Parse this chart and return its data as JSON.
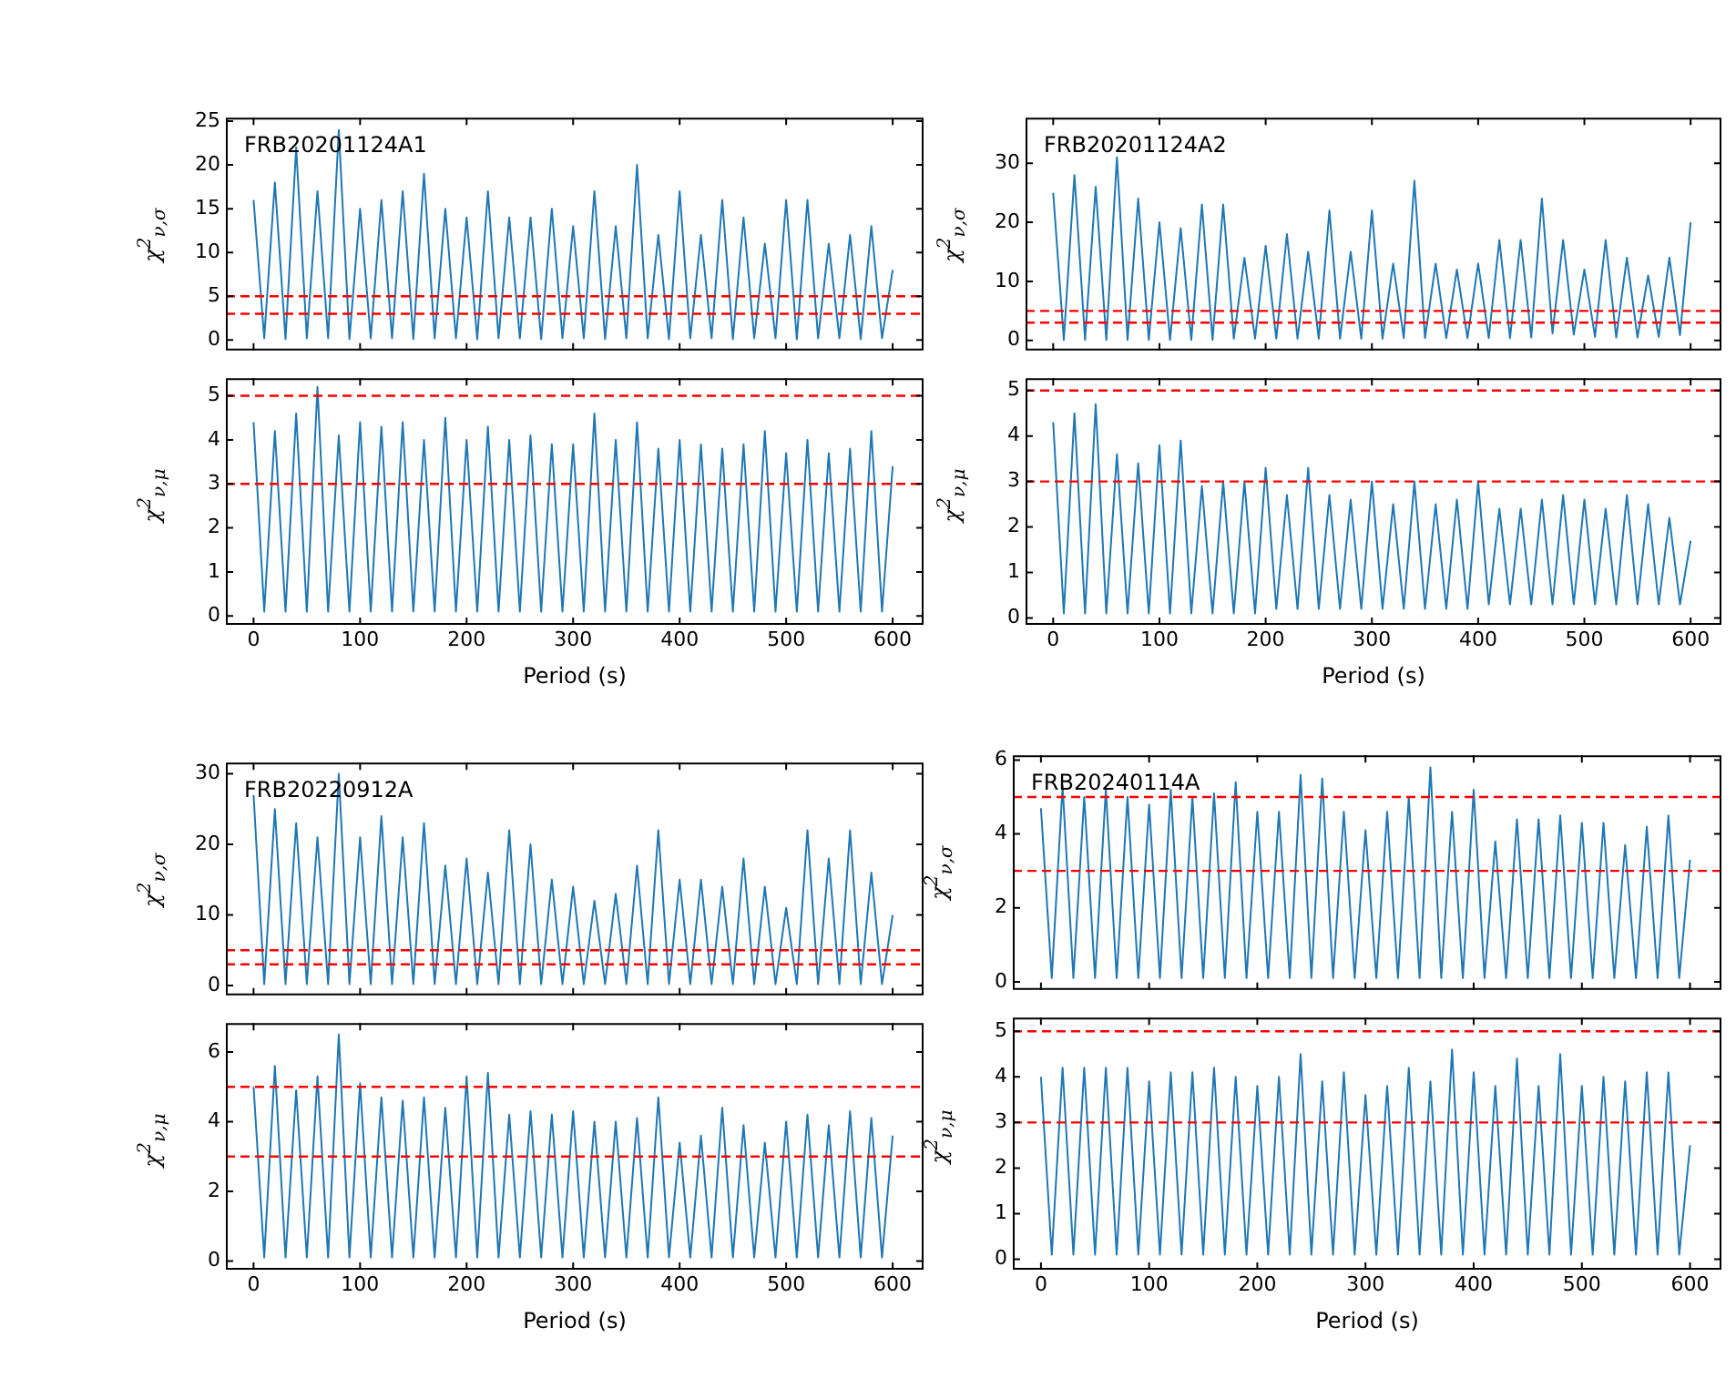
{
  "chart_data": [
    {
      "type": "line",
      "annotations": [
        "FRB20201124A1"
      ],
      "ylabel": "χ$^{2}$$_{ν,σ}$",
      "tick_labels": "y",
      "xlim": [
        -26,
        629
      ],
      "xticks": [
        0,
        100,
        200,
        300,
        400,
        500,
        600
      ],
      "ylim": [
        -1.2,
        25.4
      ],
      "yticks": [
        0,
        5,
        10,
        15,
        20,
        25
      ],
      "x": [
        0,
        10,
        20,
        30,
        40,
        50,
        60,
        70,
        80,
        90,
        100,
        110,
        120,
        130,
        140,
        150,
        160,
        170,
        180,
        190,
        200,
        210,
        220,
        230,
        240,
        250,
        260,
        270,
        280,
        290,
        300,
        310,
        320,
        330,
        340,
        350,
        360,
        370,
        380,
        390,
        400,
        410,
        420,
        430,
        440,
        450,
        460,
        470,
        480,
        490,
        500,
        510,
        520,
        530,
        540,
        550,
        560,
        570,
        580,
        590,
        600
      ],
      "series": [
        {
          "color": "#1f77b4",
          "values": [
            16,
            0.2,
            18,
            0.1,
            22,
            0.2,
            17,
            0.2,
            24,
            0.1,
            15,
            0.2,
            16,
            0.2,
            17,
            0.1,
            19,
            0.2,
            15,
            0.2,
            14,
            0.1,
            17,
            0.2,
            14,
            0.2,
            14,
            0.1,
            15,
            0.2,
            13,
            0.2,
            17,
            0.1,
            13,
            0.2,
            20,
            0.2,
            12,
            0.1,
            17,
            0.2,
            12,
            0.2,
            16,
            0.1,
            14,
            0.2,
            11,
            0.2,
            16,
            0.1,
            16,
            0.2,
            11,
            0.2,
            12,
            0.1,
            13,
            0.2,
            8
          ]
        }
      ],
      "ref_lines": [
        {
          "axis": "y",
          "value": 5,
          "color": "#ff0000",
          "line_style": "dashed"
        },
        {
          "axis": "y",
          "value": 3,
          "color": "#ff0000",
          "line_style": "dashed"
        }
      ]
    },
    {
      "type": "line",
      "ylabel": "χ$^{2}$$_{ν,μ}$",
      "xlabel": "Period (s)",
      "xlim": [
        -26,
        629
      ],
      "xticks": [
        0,
        100,
        200,
        300,
        400,
        500,
        600
      ],
      "ylim": [
        -0.2,
        5.4
      ],
      "yticks": [
        0,
        1,
        2,
        3,
        4,
        5
      ],
      "x": [
        0,
        10,
        20,
        30,
        40,
        50,
        60,
        70,
        80,
        90,
        100,
        110,
        120,
        130,
        140,
        150,
        160,
        170,
        180,
        190,
        200,
        210,
        220,
        230,
        240,
        250,
        260,
        270,
        280,
        290,
        300,
        310,
        320,
        330,
        340,
        350,
        360,
        370,
        380,
        390,
        400,
        410,
        420,
        430,
        440,
        450,
        460,
        470,
        480,
        490,
        500,
        510,
        520,
        530,
        540,
        550,
        560,
        570,
        580,
        590,
        600
      ],
      "series": [
        {
          "color": "#1f77b4",
          "values": [
            4.4,
            0.1,
            4.2,
            0.1,
            4.6,
            0.1,
            5.2,
            0.1,
            4.1,
            0.1,
            4.4,
            0.1,
            4.3,
            0.1,
            4.4,
            0.1,
            4,
            0.1,
            4.5,
            0.1,
            4,
            0.1,
            4.3,
            0.1,
            4,
            0.1,
            4.1,
            0.1,
            3.9,
            0.1,
            3.9,
            0.1,
            4.6,
            0.1,
            4,
            0.1,
            4.4,
            0.1,
            3.8,
            0.1,
            4,
            0.1,
            3.9,
            0.1,
            3.8,
            0.1,
            3.9,
            0.1,
            4.2,
            0.1,
            3.7,
            0.1,
            4,
            0.1,
            3.7,
            0.1,
            3.8,
            0.1,
            4.2,
            0.1,
            3.4
          ]
        }
      ],
      "ref_lines": [
        {
          "axis": "y",
          "value": 5,
          "color": "#ff0000",
          "line_style": "dashed"
        },
        {
          "axis": "y",
          "value": 3,
          "color": "#ff0000",
          "line_style": "dashed"
        }
      ]
    },
    {
      "type": "line",
      "annotations": [
        "FRB20201124A2"
      ],
      "ylabel": "χ$^{2}$$_{ν,σ}$",
      "tick_labels": "y",
      "xlim": [
        -26,
        629
      ],
      "xticks": [
        0,
        100,
        200,
        300,
        400,
        500,
        600
      ],
      "ylim": [
        -1.7,
        37.7
      ],
      "yticks": [
        0,
        10,
        20,
        30
      ],
      "x": [
        0,
        10,
        20,
        30,
        40,
        50,
        60,
        70,
        80,
        90,
        100,
        110,
        120,
        130,
        140,
        150,
        160,
        170,
        180,
        190,
        200,
        210,
        220,
        230,
        240,
        250,
        260,
        270,
        280,
        290,
        300,
        310,
        320,
        330,
        340,
        350,
        360,
        370,
        380,
        390,
        400,
        410,
        420,
        430,
        440,
        450,
        460,
        470,
        480,
        490,
        500,
        510,
        520,
        530,
        540,
        550,
        560,
        570,
        580,
        590,
        600
      ],
      "series": [
        {
          "color": "#1f77b4",
          "values": [
            25,
            0.1,
            28,
            0.1,
            26,
            0.1,
            31,
            0.1,
            24,
            0.1,
            20,
            0.1,
            19,
            0.1,
            23,
            0.1,
            23,
            0.3,
            14,
            0.3,
            16,
            0.3,
            18,
            0.3,
            15,
            0.3,
            22,
            0.3,
            15,
            0.3,
            22,
            0.3,
            13,
            0.4,
            27,
            0.4,
            13,
            0.4,
            12,
            0.4,
            13,
            0.4,
            17,
            0.4,
            17,
            0.5,
            24,
            1.2,
            17,
            1,
            12,
            0.6,
            17,
            0.5,
            14,
            0.5,
            11,
            0.6,
            14,
            0.9,
            20
          ]
        }
      ],
      "ref_lines": [
        {
          "axis": "y",
          "value": 5,
          "color": "#ff0000",
          "line_style": "dashed"
        },
        {
          "axis": "y",
          "value": 3,
          "color": "#ff0000",
          "line_style": "dashed"
        }
      ]
    },
    {
      "type": "line",
      "ylabel": "χ$^{2}$$_{ν,μ}$",
      "xlabel": "Period (s)",
      "xlim": [
        -26,
        629
      ],
      "xticks": [
        0,
        100,
        200,
        300,
        400,
        500,
        600
      ],
      "ylim": [
        -0.15,
        5.27
      ],
      "yticks": [
        0,
        1,
        2,
        3,
        4,
        5
      ],
      "x": [
        0,
        10,
        20,
        30,
        40,
        50,
        60,
        70,
        80,
        90,
        100,
        110,
        120,
        130,
        140,
        150,
        160,
        170,
        180,
        190,
        200,
        210,
        220,
        230,
        240,
        250,
        260,
        270,
        280,
        290,
        300,
        310,
        320,
        330,
        340,
        350,
        360,
        370,
        380,
        390,
        400,
        410,
        420,
        430,
        440,
        450,
        460,
        470,
        480,
        490,
        500,
        510,
        520,
        530,
        540,
        550,
        560,
        570,
        580,
        590,
        600
      ],
      "series": [
        {
          "color": "#1f77b4",
          "values": [
            4.3,
            0.1,
            4.5,
            0.1,
            4.7,
            0.1,
            3.6,
            0.1,
            3.4,
            0.1,
            3.8,
            0.1,
            3.9,
            0.1,
            2.9,
            0.1,
            3,
            0.1,
            3,
            0.1,
            3.3,
            0.2,
            2.7,
            0.2,
            3.3,
            0.2,
            2.7,
            0.2,
            2.6,
            0.2,
            3,
            0.2,
            2.5,
            0.2,
            3,
            0.2,
            2.5,
            0.2,
            2.6,
            0.2,
            3,
            0.3,
            2.4,
            0.3,
            2.4,
            0.3,
            2.6,
            0.3,
            2.7,
            0.3,
            2.6,
            0.3,
            2.4,
            0.3,
            2.7,
            0.3,
            2.5,
            0.3,
            2.2,
            0.3,
            1.7
          ]
        }
      ],
      "ref_lines": [
        {
          "axis": "y",
          "value": 5,
          "color": "#ff0000",
          "line_style": "dashed"
        },
        {
          "axis": "y",
          "value": 3,
          "color": "#ff0000",
          "line_style": "dashed"
        }
      ]
    },
    {
      "type": "line",
      "annotations": [
        "FRB20220912A"
      ],
      "ylabel": "χ$^{2}$$_{ν,σ}$",
      "tick_labels": "y",
      "xlim": [
        -26,
        629
      ],
      "xticks": [
        0,
        100,
        200,
        300,
        400,
        500,
        600
      ],
      "ylim": [
        -1.4,
        31.6
      ],
      "yticks": [
        0,
        10,
        20,
        30
      ],
      "x": [
        0,
        10,
        20,
        30,
        40,
        50,
        60,
        70,
        80,
        90,
        100,
        110,
        120,
        130,
        140,
        150,
        160,
        170,
        180,
        190,
        200,
        210,
        220,
        230,
        240,
        250,
        260,
        270,
        280,
        290,
        300,
        310,
        320,
        330,
        340,
        350,
        360,
        370,
        380,
        390,
        400,
        410,
        420,
        430,
        440,
        450,
        460,
        470,
        480,
        490,
        500,
        510,
        520,
        530,
        540,
        550,
        560,
        570,
        580,
        590,
        600
      ],
      "series": [
        {
          "color": "#1f77b4",
          "values": [
            27,
            0.2,
            25,
            0.2,
            23,
            0.2,
            21,
            0.2,
            30,
            0.2,
            21,
            0.2,
            24,
            0.2,
            21,
            0.2,
            23,
            0.2,
            17,
            0.2,
            18,
            0.2,
            16,
            0.2,
            22,
            0.2,
            20,
            0.2,
            15,
            0.2,
            14,
            0.2,
            12,
            0.2,
            13,
            0.2,
            17,
            0.2,
            22,
            0.2,
            15,
            0.2,
            15,
            0.2,
            14,
            0.2,
            18,
            0.2,
            14,
            0.2,
            11,
            0.2,
            22,
            0.2,
            18,
            0.2,
            22,
            0.2,
            16,
            0.2,
            10
          ]
        }
      ],
      "ref_lines": [
        {
          "axis": "y",
          "value": 5,
          "color": "#ff0000",
          "line_style": "dashed"
        },
        {
          "axis": "y",
          "value": 3,
          "color": "#ff0000",
          "line_style": "dashed"
        }
      ]
    },
    {
      "type": "line",
      "ylabel": "χ$^{2}$$_{ν,μ}$",
      "xlabel": "Period (s)",
      "xlim": [
        -26,
        629
      ],
      "xticks": [
        0,
        100,
        200,
        300,
        400,
        500,
        600
      ],
      "ylim": [
        -0.25,
        6.83
      ],
      "yticks": [
        0,
        2,
        4,
        6
      ],
      "x": [
        0,
        10,
        20,
        30,
        40,
        50,
        60,
        70,
        80,
        90,
        100,
        110,
        120,
        130,
        140,
        150,
        160,
        170,
        180,
        190,
        200,
        210,
        220,
        230,
        240,
        250,
        260,
        270,
        280,
        290,
        300,
        310,
        320,
        330,
        340,
        350,
        360,
        370,
        380,
        390,
        400,
        410,
        420,
        430,
        440,
        450,
        460,
        470,
        480,
        490,
        500,
        510,
        520,
        530,
        540,
        550,
        560,
        570,
        580,
        590,
        600
      ],
      "series": [
        {
          "color": "#1f77b4",
          "values": [
            5,
            0.1,
            5.6,
            0.1,
            4.9,
            0.1,
            5.3,
            0.1,
            6.5,
            0.1,
            5.1,
            0.1,
            4.7,
            0.1,
            4.6,
            0.1,
            4.7,
            0.1,
            4.4,
            0.1,
            5.3,
            0.1,
            5.4,
            0.1,
            4.2,
            0.1,
            4.3,
            0.1,
            4.2,
            0.1,
            4.3,
            0.1,
            4,
            0.1,
            4,
            0.1,
            4.1,
            0.1,
            4.7,
            0.1,
            3.4,
            0.1,
            3.6,
            0.1,
            4.4,
            0.1,
            3.9,
            0.1,
            3.4,
            0.1,
            4,
            0.1,
            4.2,
            0.1,
            3.9,
            0.1,
            4.3,
            0.1,
            4.1,
            0.1,
            3.6
          ]
        }
      ],
      "ref_lines": [
        {
          "axis": "y",
          "value": 5,
          "color": "#ff0000",
          "line_style": "dashed"
        },
        {
          "axis": "y",
          "value": 3,
          "color": "#ff0000",
          "line_style": "dashed"
        }
      ]
    },
    {
      "type": "line",
      "annotations": [
        "FRB20240114A"
      ],
      "ylabel": "χ$^{2}$$_{ν,σ}$",
      "tick_labels": "y",
      "xlim": [
        -26,
        629
      ],
      "xticks": [
        0,
        100,
        200,
        300,
        400,
        500,
        600
      ],
      "ylim": [
        -0.22,
        6.13
      ],
      "yticks": [
        0,
        2,
        4,
        6
      ],
      "x": [
        0,
        10,
        20,
        30,
        40,
        50,
        60,
        70,
        80,
        90,
        100,
        110,
        120,
        130,
        140,
        150,
        160,
        170,
        180,
        190,
        200,
        210,
        220,
        230,
        240,
        250,
        260,
        270,
        280,
        290,
        300,
        310,
        320,
        330,
        340,
        350,
        360,
        370,
        380,
        390,
        400,
        410,
        420,
        430,
        440,
        450,
        460,
        470,
        480,
        490,
        500,
        510,
        520,
        530,
        540,
        550,
        560,
        570,
        580,
        590,
        600
      ],
      "series": [
        {
          "color": "#1f77b4",
          "values": [
            4.7,
            0.1,
            5.3,
            0.1,
            5,
            0.1,
            5.2,
            0.1,
            5,
            0.1,
            4.8,
            0.1,
            5.2,
            0.1,
            5,
            0.1,
            5.1,
            0.1,
            5.4,
            0.1,
            4.6,
            0.1,
            4.6,
            0.1,
            5.6,
            0.1,
            5.5,
            0.1,
            4.6,
            0.1,
            4.1,
            0.1,
            4.6,
            0.1,
            5,
            0.1,
            5.8,
            0.1,
            4.6,
            0.1,
            5.2,
            0.1,
            3.8,
            0.1,
            4.4,
            0.1,
            4.4,
            0.1,
            4.5,
            0.1,
            4.3,
            0.1,
            4.3,
            0.1,
            3.7,
            0.1,
            4.2,
            0.1,
            4.5,
            0.1,
            3.3
          ]
        }
      ],
      "ref_lines": [
        {
          "axis": "y",
          "value": 5,
          "color": "#ff0000",
          "line_style": "dashed"
        },
        {
          "axis": "y",
          "value": 3,
          "color": "#ff0000",
          "line_style": "dashed"
        }
      ]
    },
    {
      "type": "line",
      "ylabel": "χ$^{2}$$_{ν,μ}$",
      "xlabel": "Period (s)",
      "xlim": [
        -26,
        629
      ],
      "xticks": [
        0,
        100,
        200,
        300,
        400,
        500,
        600
      ],
      "ylim": [
        -0.23,
        5.3
      ],
      "yticks": [
        0,
        1,
        2,
        3,
        4,
        5
      ],
      "x": [
        0,
        10,
        20,
        30,
        40,
        50,
        60,
        70,
        80,
        90,
        100,
        110,
        120,
        130,
        140,
        150,
        160,
        170,
        180,
        190,
        200,
        210,
        220,
        230,
        240,
        250,
        260,
        270,
        280,
        290,
        300,
        310,
        320,
        330,
        340,
        350,
        360,
        370,
        380,
        390,
        400,
        410,
        420,
        430,
        440,
        450,
        460,
        470,
        480,
        490,
        500,
        510,
        520,
        530,
        540,
        550,
        560,
        570,
        580,
        590,
        600
      ],
      "series": [
        {
          "color": "#1f77b4",
          "values": [
            4,
            0.1,
            4.2,
            0.1,
            4.2,
            0.1,
            4.2,
            0.1,
            4.2,
            0.1,
            3.9,
            0.1,
            4.1,
            0.1,
            4.1,
            0.1,
            4.2,
            0.1,
            4,
            0.1,
            3.8,
            0.1,
            4,
            0.1,
            4.5,
            0.1,
            3.9,
            0.1,
            4.1,
            0.1,
            3.6,
            0.1,
            3.8,
            0.1,
            4.2,
            0.1,
            3.9,
            0.1,
            4.6,
            0.1,
            4.1,
            0.1,
            3.8,
            0.1,
            4.4,
            0.1,
            3.8,
            0.1,
            4.5,
            0.1,
            3.8,
            0.1,
            4,
            0.1,
            3.9,
            0.1,
            4.1,
            0.1,
            4.1,
            0.1,
            2.5
          ]
        }
      ],
      "ref_lines": [
        {
          "axis": "y",
          "value": 5,
          "color": "#ff0000",
          "line_style": "dashed"
        },
        {
          "axis": "y",
          "value": 3,
          "color": "#ff0000",
          "line_style": "dashed"
        }
      ]
    }
  ]
}
